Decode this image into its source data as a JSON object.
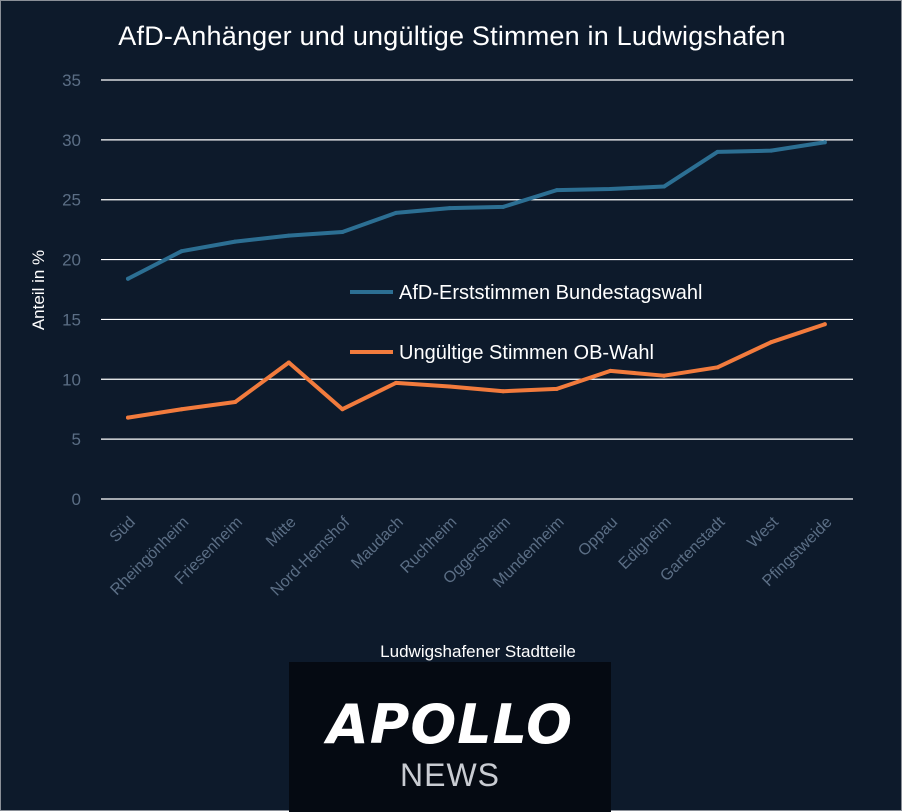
{
  "chart_data": {
    "type": "line",
    "title": "AfD-Anhänger und ungültige Stimmen in Ludwigshafen",
    "xlabel": "Ludwigshafener Stadtteile",
    "ylabel": "Anteil in %",
    "ylim": [
      0,
      35
    ],
    "yticks": [
      "0",
      "5",
      "10",
      "15",
      "20",
      "25",
      "30",
      "35"
    ],
    "grid": true,
    "legend_position": "center-right",
    "categories": [
      "Süd",
      "Rheingönheim",
      "Friesenheim",
      "Mitte",
      "Nord-Hemshof",
      "Maudach",
      "Ruchheim",
      "Oggersheim",
      "Mundenheim",
      "Oppau",
      "Edigheim",
      "Gartenstadt",
      "West",
      "Pfingstweide"
    ],
    "series": [
      {
        "name": "AfD-Erststimmen Bundestagswahl",
        "color": "#2c6f93",
        "values": [
          18.4,
          20.7,
          21.5,
          22.0,
          22.3,
          23.9,
          24.3,
          24.4,
          25.8,
          25.9,
          26.1,
          29.0,
          29.1,
          29.8
        ]
      },
      {
        "name": "Ungültige Stimmen OB-Wahl",
        "color": "#f27b3d",
        "values": [
          6.8,
          7.5,
          8.1,
          11.4,
          7.5,
          9.7,
          9.4,
          9.0,
          9.2,
          10.7,
          10.3,
          11.0,
          13.1,
          14.6
        ]
      }
    ]
  },
  "colors": {
    "background": "#0d1a2b",
    "grid": "#ffffff",
    "tick_label": "#5b6e85"
  },
  "logo": {
    "name": "APOLLO",
    "sub": "NEWS"
  }
}
